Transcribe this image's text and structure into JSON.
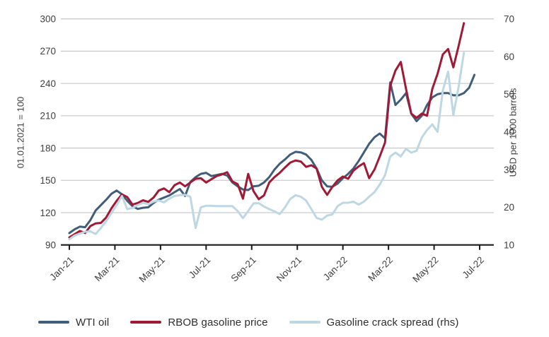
{
  "chart_data": {
    "type": "line",
    "x_unit": "weeks since 01.01.2021",
    "x_tick_labels": [
      "Jan-21",
      "Mar-21",
      "May-21",
      "Jul-21",
      "Sep-21",
      "Nov-21",
      "Jan-22",
      "Mar-22",
      "May-22",
      "Jul-22"
    ],
    "x_range_months": 18,
    "grid": "horizontal-on",
    "legend_position": "bottom",
    "left_axis": {
      "title": "01.01.2021 = 100",
      "ticks": [
        90,
        120,
        150,
        180,
        210,
        240,
        270,
        300
      ],
      "min": 90,
      "max": 300
    },
    "right_axis": {
      "title": "USD per 1000 barrels",
      "ticks": [
        10,
        20,
        30,
        40,
        50,
        60,
        70
      ],
      "min": 10,
      "max": 70
    },
    "series": [
      {
        "name": "WTI oil",
        "axis": "left",
        "color": "#415d7c",
        "values": [
          101,
          104.5,
          107,
          106.5,
          113,
          122,
          127,
          132,
          137.5,
          140.5,
          137,
          131,
          126,
          123.5,
          124.5,
          125,
          129,
          132,
          134,
          136,
          139,
          142,
          135.5,
          148.5,
          153,
          156,
          157,
          154,
          155,
          156,
          154.5,
          148,
          144.5,
          141.5,
          141,
          144.5,
          145,
          148,
          153,
          160,
          165.5,
          169.5,
          174,
          176.5,
          176,
          174,
          169,
          161,
          150,
          144.5,
          144,
          147,
          152,
          156,
          161,
          168,
          176,
          184,
          190,
          193.5,
          189,
          241,
          220,
          225,
          231,
          212,
          205,
          210,
          220,
          227,
          230,
          231,
          231,
          229,
          229,
          231,
          236,
          248
        ]
      },
      {
        "name": "RBOB gasoline price",
        "axis": "left",
        "color": "#a01a35",
        "values": [
          97,
          100,
          103,
          101,
          107.5,
          110,
          110.5,
          115.5,
          124,
          131,
          137,
          134.5,
          127.5,
          129,
          131.5,
          130,
          134,
          140.5,
          142.5,
          139,
          145.5,
          148,
          144.5,
          148,
          151.5,
          152,
          148,
          151,
          154,
          155.5,
          157.5,
          149,
          146.5,
          133,
          156,
          140,
          132.5,
          136,
          148,
          153,
          157,
          162,
          166.5,
          168.5,
          167.5,
          162.5,
          164,
          161,
          144,
          136.5,
          144,
          150,
          153.5,
          151.5,
          159,
          163,
          166,
          152,
          160,
          172,
          185,
          238,
          252,
          260,
          235,
          212,
          208,
          212,
          210,
          235,
          249,
          267,
          272,
          255,
          275,
          296
        ]
      },
      {
        "name": "Gasoline crack spread (rhs)",
        "axis": "right",
        "color": "#bdd7e3",
        "values": [
          11.5,
          12.5,
          13,
          13.5,
          13.6,
          12.9,
          14.5,
          16.3,
          18.5,
          20.6,
          23,
          19.5,
          19.8,
          20.6,
          21.2,
          20.8,
          21.5,
          21.8,
          21.3,
          22.3,
          23,
          23.2,
          23.3,
          22.8,
          14.5,
          20,
          20.4,
          20.4,
          20.3,
          20.3,
          20.3,
          20.3,
          19,
          17.1,
          19,
          21,
          21.1,
          20.2,
          19.5,
          18.9,
          18.2,
          20,
          22.2,
          23.2,
          22.8,
          21.8,
          19.5,
          17.2,
          16.7,
          17.8,
          18.1,
          20.3,
          21.2,
          21.2,
          21.5,
          20.7,
          21.5,
          22.8,
          24,
          26,
          28.5,
          33.5,
          34.5,
          33.5,
          35.5,
          34.5,
          35,
          38.5,
          40.5,
          42,
          40,
          51,
          56,
          44.5,
          52,
          61
        ]
      }
    ],
    "colors": {
      "gridline": "#c9cbce",
      "axis_line": "#1a1a1a",
      "tick_label": "#3f3f3f"
    }
  },
  "legend": {
    "items": [
      {
        "label": "WTI oil",
        "color": "#415d7c"
      },
      {
        "label": "RBOB gasoline price",
        "color": "#a01a35"
      },
      {
        "label": "Gasoline crack spread (rhs)",
        "color": "#bdd7e3"
      }
    ]
  }
}
